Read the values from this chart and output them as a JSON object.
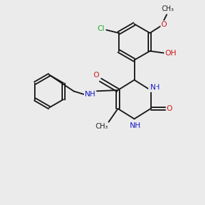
{
  "background_color": "#ebebeb",
  "bond_color": "#1a1a1a",
  "atom_colors": {
    "N": "#1414cc",
    "O": "#cc1414",
    "Cl": "#22aa22",
    "C": "#1a1a1a"
  },
  "figsize": [
    3.0,
    3.0
  ],
  "dpi": 100,
  "xlim": [
    0,
    10
  ],
  "ylim": [
    0,
    10
  ]
}
